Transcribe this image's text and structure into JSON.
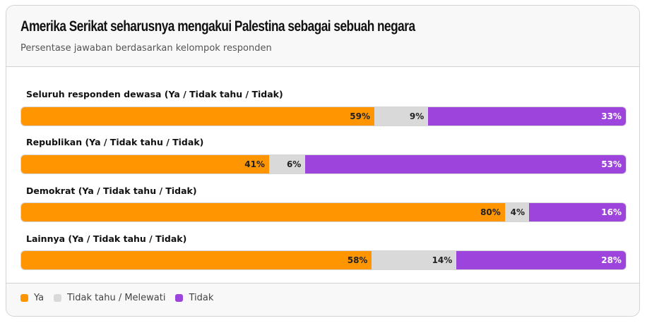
{
  "header": {
    "title": "Amerika Serikat seharusnya mengakui Palestina sebagai sebuah negara",
    "subtitle": "Persentase jawaban berdasarkan kelompok responden"
  },
  "colors": {
    "ya": "#ff9500",
    "tidak_tahu": "#d9d9d9",
    "tidak": "#9c44dc"
  },
  "rows": [
    {
      "label": "Seluruh responden dewasa (Ya / Tidak tahu / Tidak)",
      "ya": 59,
      "tidak_tahu": 9,
      "tidak": 33,
      "ya_label": "59%",
      "tidak_tahu_label": "9%",
      "tidak_label": "33%"
    },
    {
      "label": "Republikan (Ya / Tidak tahu / Tidak)",
      "ya": 41,
      "tidak_tahu": 6,
      "tidak": 53,
      "ya_label": "41%",
      "tidak_tahu_label": "6%",
      "tidak_label": "53%"
    },
    {
      "label": "Demokrat (Ya / Tidak tahu / Tidak)",
      "ya": 80,
      "tidak_tahu": 4,
      "tidak": 16,
      "ya_label": "80%",
      "tidak_tahu_label": "4%",
      "tidak_label": "16%"
    },
    {
      "label": "Lainnya (Ya / Tidak tahu / Tidak)",
      "ya": 58,
      "tidak_tahu": 14,
      "tidak": 28,
      "ya_label": "58%",
      "tidak_tahu_label": "14%",
      "tidak_label": "28%"
    }
  ],
  "legend": [
    {
      "label": "Ya",
      "color": "#ff9500"
    },
    {
      "label": "Tidak tahu / Melewati",
      "color": "#d9d9d9"
    },
    {
      "label": "Tidak",
      "color": "#9c44dc"
    }
  ],
  "chart_data": {
    "type": "bar",
    "orientation": "horizontal",
    "stacked": true,
    "title": "Amerika Serikat seharusnya mengakui Palestina sebagai sebuah negara",
    "subtitle": "Persentase jawaban berdasarkan kelompok responden",
    "categories": [
      "Seluruh responden dewasa",
      "Republikan",
      "Demokrat",
      "Lainnya"
    ],
    "series": [
      {
        "name": "Ya",
        "values": [
          59,
          41,
          80,
          58
        ]
      },
      {
        "name": "Tidak tahu / Melewati",
        "values": [
          9,
          6,
          4,
          14
        ]
      },
      {
        "name": "Tidak",
        "values": [
          33,
          53,
          16,
          28
        ]
      }
    ],
    "xlabel": "",
    "ylabel": "",
    "xlim": [
      0,
      100
    ],
    "grid": false,
    "legend_position": "bottom"
  }
}
